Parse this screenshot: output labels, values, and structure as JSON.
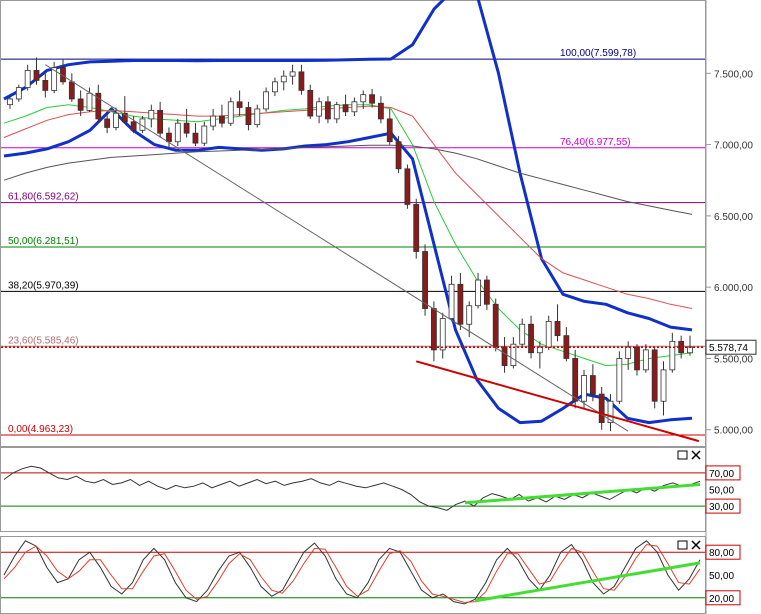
{
  "chart_data": [
    {
      "type": "candlestick",
      "panel": "price",
      "ylim": [
        4900,
        8000
      ],
      "y_ticks": [
        "7.500,00",
        "7.000,00",
        "6.500,00",
        "6.000,00",
        "5.500,00",
        "5.000,00"
      ],
      "y_tick_values": [
        7500,
        7000,
        6500,
        6000,
        5500,
        5000
      ],
      "last_price": {
        "label": "5.578,74",
        "value": 5578.74,
        "color": "#cc0000"
      },
      "fibonacci_levels": [
        {
          "label": "100,00(7.599,78)",
          "value": 7599.78,
          "color": "#000080"
        },
        {
          "label": "76,40(6.977,55)",
          "value": 6977.55,
          "color": "#cc00cc"
        },
        {
          "label": "61,80(6.592,62)",
          "value": 6592.62,
          "color": "#800080"
        },
        {
          "label": "50,00(6.281,51)",
          "value": 6281.51,
          "color": "#008000"
        },
        {
          "label": "38,20(5.970,39)",
          "value": 5970.39,
          "color": "#000000"
        },
        {
          "label": "23,60(5.585,46)",
          "value": 5585.46,
          "color": "#b07070"
        },
        {
          "label": "0,00(4.963,23)",
          "value": 4963.23,
          "color": "#cc0000"
        }
      ],
      "series": [
        {
          "kind": "bollinger-upper",
          "color": "#1030c8",
          "values": [
            7320,
            7400,
            7520,
            7560,
            7580,
            7585,
            7590,
            7590,
            7590,
            7588,
            7590,
            7590,
            7590,
            7590,
            7590,
            7592,
            7595,
            7598,
            7600,
            7700,
            7950,
            8100,
            8050,
            7500,
            6800,
            6200,
            5950,
            5900,
            5880,
            5820,
            5780,
            5720,
            5700
          ]
        },
        {
          "kind": "bollinger-lower",
          "color": "#1030c8",
          "values": [
            6920,
            6940,
            6970,
            7020,
            7100,
            7250,
            7100,
            7000,
            6960,
            6960,
            6980,
            6970,
            6960,
            6970,
            6990,
            7000,
            7020,
            7050,
            7080,
            6900,
            6300,
            5700,
            5350,
            5150,
            5050,
            5060,
            5150,
            5250,
            5220,
            5080,
            5050,
            5070,
            5080
          ]
        },
        {
          "kind": "ma-short",
          "color": "#2ecc40",
          "values": [
            7150,
            7200,
            7260,
            7280,
            7260,
            7230,
            7200,
            7180,
            7170,
            7160,
            7180,
            7200,
            7220,
            7240,
            7250,
            7270,
            7280,
            7280,
            7250,
            7000,
            6600,
            6300,
            6050,
            5850,
            5700,
            5600,
            5550,
            5500,
            5450,
            5460,
            5500,
            5520,
            5540
          ]
        },
        {
          "kind": "ma-mid",
          "color": "#e05050",
          "values": [
            7050,
            7110,
            7170,
            7210,
            7230,
            7240,
            7230,
            7220,
            7210,
            7200,
            7200,
            7210,
            7220,
            7230,
            7240,
            7250,
            7260,
            7270,
            7260,
            7200,
            7000,
            6800,
            6650,
            6500,
            6350,
            6200,
            6100,
            6050,
            6000,
            5950,
            5920,
            5880,
            5850
          ]
        },
        {
          "kind": "ma-long",
          "color": "#555555",
          "values": [
            6750,
            6800,
            6840,
            6870,
            6890,
            6910,
            6920,
            6930,
            6940,
            6950,
            6955,
            6960,
            6965,
            6970,
            6980,
            6985,
            6990,
            6995,
            6995,
            6990,
            6970,
            6940,
            6900,
            6850,
            6800,
            6760,
            6720,
            6680,
            6640,
            6600,
            6570,
            6540,
            6510
          ]
        }
      ],
      "candles": [
        {
          "o": 7280,
          "h": 7340,
          "l": 7250,
          "c": 7320
        },
        {
          "o": 7320,
          "h": 7420,
          "l": 7300,
          "c": 7400
        },
        {
          "o": 7400,
          "h": 7560,
          "l": 7380,
          "c": 7520
        },
        {
          "o": 7520,
          "h": 7610,
          "l": 7420,
          "c": 7450
        },
        {
          "o": 7450,
          "h": 7520,
          "l": 7330,
          "c": 7380
        },
        {
          "o": 7380,
          "h": 7580,
          "l": 7360,
          "c": 7540
        },
        {
          "o": 7540,
          "h": 7600,
          "l": 7420,
          "c": 7440
        },
        {
          "o": 7440,
          "h": 7500,
          "l": 7300,
          "c": 7320
        },
        {
          "o": 7320,
          "h": 7380,
          "l": 7200,
          "c": 7240
        },
        {
          "o": 7240,
          "h": 7400,
          "l": 7230,
          "c": 7360
        },
        {
          "o": 7360,
          "h": 7420,
          "l": 7150,
          "c": 7180
        },
        {
          "o": 7180,
          "h": 7230,
          "l": 7080,
          "c": 7120
        },
        {
          "o": 7120,
          "h": 7260,
          "l": 7100,
          "c": 7220
        },
        {
          "o": 7220,
          "h": 7340,
          "l": 7150,
          "c": 7160
        },
        {
          "o": 7160,
          "h": 7200,
          "l": 7080,
          "c": 7100
        },
        {
          "o": 7100,
          "h": 7200,
          "l": 7080,
          "c": 7180
        },
        {
          "o": 7180,
          "h": 7280,
          "l": 7120,
          "c": 7240
        },
        {
          "o": 7240,
          "h": 7300,
          "l": 7050,
          "c": 7080
        },
        {
          "o": 7080,
          "h": 7120,
          "l": 6980,
          "c": 7020
        },
        {
          "o": 7020,
          "h": 7180,
          "l": 6990,
          "c": 7150
        },
        {
          "o": 7150,
          "h": 7250,
          "l": 7050,
          "c": 7080
        },
        {
          "o": 7080,
          "h": 7150,
          "l": 6990,
          "c": 7010
        },
        {
          "o": 7010,
          "h": 7160,
          "l": 6990,
          "c": 7130
        },
        {
          "o": 7130,
          "h": 7250,
          "l": 7100,
          "c": 7200
        },
        {
          "o": 7200,
          "h": 7280,
          "l": 7120,
          "c": 7150
        },
        {
          "o": 7150,
          "h": 7330,
          "l": 7130,
          "c": 7300
        },
        {
          "o": 7300,
          "h": 7380,
          "l": 7200,
          "c": 7260
        },
        {
          "o": 7260,
          "h": 7300,
          "l": 7100,
          "c": 7140
        },
        {
          "o": 7140,
          "h": 7280,
          "l": 7120,
          "c": 7250
        },
        {
          "o": 7250,
          "h": 7400,
          "l": 7230,
          "c": 7370
        },
        {
          "o": 7370,
          "h": 7470,
          "l": 7340,
          "c": 7440
        },
        {
          "o": 7440,
          "h": 7520,
          "l": 7380,
          "c": 7480
        },
        {
          "o": 7480,
          "h": 7560,
          "l": 7420,
          "c": 7510
        },
        {
          "o": 7510,
          "h": 7560,
          "l": 7350,
          "c": 7380
        },
        {
          "o": 7380,
          "h": 7420,
          "l": 7180,
          "c": 7200
        },
        {
          "o": 7200,
          "h": 7330,
          "l": 7150,
          "c": 7300
        },
        {
          "o": 7300,
          "h": 7340,
          "l": 7150,
          "c": 7180
        },
        {
          "o": 7180,
          "h": 7300,
          "l": 7150,
          "c": 7280
        },
        {
          "o": 7280,
          "h": 7350,
          "l": 7200,
          "c": 7230
        },
        {
          "o": 7230,
          "h": 7330,
          "l": 7200,
          "c": 7300
        },
        {
          "o": 7300,
          "h": 7380,
          "l": 7250,
          "c": 7350
        },
        {
          "o": 7350,
          "h": 7390,
          "l": 7260,
          "c": 7290
        },
        {
          "o": 7290,
          "h": 7340,
          "l": 7150,
          "c": 7180
        },
        {
          "o": 7180,
          "h": 7250,
          "l": 7000,
          "c": 7020
        },
        {
          "o": 7020,
          "h": 7060,
          "l": 6800,
          "c": 6830
        },
        {
          "o": 6830,
          "h": 6860,
          "l": 6550,
          "c": 6580
        },
        {
          "o": 6580,
          "h": 6620,
          "l": 6200,
          "c": 6250
        },
        {
          "o": 6250,
          "h": 6300,
          "l": 5800,
          "c": 5850
        },
        {
          "o": 5850,
          "h": 5900,
          "l": 5480,
          "c": 5560
        },
        {
          "o": 5560,
          "h": 5820,
          "l": 5500,
          "c": 5780
        },
        {
          "o": 5780,
          "h": 6080,
          "l": 5760,
          "c": 6020
        },
        {
          "o": 6020,
          "h": 6100,
          "l": 5700,
          "c": 5740
        },
        {
          "o": 5740,
          "h": 5900,
          "l": 5650,
          "c": 5870
        },
        {
          "o": 5870,
          "h": 6100,
          "l": 5850,
          "c": 6050
        },
        {
          "o": 6050,
          "h": 6080,
          "l": 5840,
          "c": 5880
        },
        {
          "o": 5880,
          "h": 5920,
          "l": 5550,
          "c": 5580
        },
        {
          "o": 5580,
          "h": 5650,
          "l": 5400,
          "c": 5450
        },
        {
          "o": 5450,
          "h": 5650,
          "l": 5430,
          "c": 5600
        },
        {
          "o": 5600,
          "h": 5780,
          "l": 5580,
          "c": 5740
        },
        {
          "o": 5740,
          "h": 5800,
          "l": 5500,
          "c": 5540
        },
        {
          "o": 5540,
          "h": 5620,
          "l": 5430,
          "c": 5580
        },
        {
          "o": 5580,
          "h": 5800,
          "l": 5560,
          "c": 5760
        },
        {
          "o": 5760,
          "h": 5880,
          "l": 5620,
          "c": 5660
        },
        {
          "o": 5660,
          "h": 5720,
          "l": 5480,
          "c": 5500
        },
        {
          "o": 5500,
          "h": 5560,
          "l": 5150,
          "c": 5200
        },
        {
          "o": 5200,
          "h": 5420,
          "l": 5150,
          "c": 5380
        },
        {
          "o": 5380,
          "h": 5460,
          "l": 5200,
          "c": 5250
        },
        {
          "o": 5250,
          "h": 5300,
          "l": 5000,
          "c": 5050
        },
        {
          "o": 5050,
          "h": 5250,
          "l": 4990,
          "c": 5200
        },
        {
          "o": 5200,
          "h": 5550,
          "l": 5180,
          "c": 5500
        },
        {
          "o": 5500,
          "h": 5620,
          "l": 5420,
          "c": 5580
        },
        {
          "o": 5580,
          "h": 5600,
          "l": 5380,
          "c": 5420
        },
        {
          "o": 5420,
          "h": 5600,
          "l": 5400,
          "c": 5560
        },
        {
          "o": 5560,
          "h": 5580,
          "l": 5150,
          "c": 5200
        },
        {
          "o": 5200,
          "h": 5480,
          "l": 5100,
          "c": 5420
        },
        {
          "o": 5420,
          "h": 5680,
          "l": 5400,
          "c": 5620
        },
        {
          "o": 5620,
          "h": 5660,
          "l": 5500,
          "c": 5540
        },
        {
          "o": 5540,
          "h": 5660,
          "l": 5520,
          "c": 5580
        }
      ]
    },
    {
      "type": "line",
      "panel": "oscillator-1",
      "ylim": [
        0,
        100
      ],
      "y_ticks": [
        "70,00",
        "50,00",
        "30,00"
      ],
      "y_tick_values": [
        70,
        50,
        30
      ],
      "series": [
        {
          "color": "#333333",
          "values": [
            62,
            70,
            75,
            78,
            76,
            70,
            64,
            62,
            66,
            60,
            58,
            62,
            56,
            58,
            62,
            55,
            60,
            54,
            50,
            55,
            52,
            54,
            58,
            52,
            56,
            60,
            54,
            58,
            62,
            57,
            60,
            55,
            58,
            60,
            63,
            58,
            55,
            60,
            57,
            54,
            52,
            55,
            58,
            54,
            50,
            44,
            35,
            30,
            28,
            25,
            32,
            36,
            30,
            40,
            45,
            42,
            38,
            44,
            36,
            40,
            35,
            42,
            38,
            44,
            40,
            46,
            42,
            38,
            44,
            50,
            46,
            52,
            48,
            55,
            58,
            54,
            56,
            60
          ]
        },
        {
          "kind": "trendline",
          "color": "#44dd33",
          "start": 23,
          "end": 48
        }
      ]
    },
    {
      "type": "line",
      "panel": "oscillator-2",
      "ylim": [
        0,
        100
      ],
      "y_ticks": [
        "80,00",
        "50,00",
        "20,00"
      ],
      "y_tick_values": [
        80,
        50,
        20
      ],
      "series": [
        {
          "color": "#333333",
          "values": [
            50,
            75,
            95,
            88,
            60,
            40,
            45,
            70,
            80,
            60,
            35,
            25,
            40,
            70,
            85,
            70,
            40,
            20,
            15,
            30,
            55,
            75,
            80,
            60,
            35,
            22,
            30,
            55,
            80,
            92,
            75,
            45,
            25,
            20,
            40,
            70,
            85,
            80,
            55,
            30,
            20,
            25,
            15,
            12,
            18,
            40,
            70,
            85,
            70,
            45,
            30,
            50,
            80,
            90,
            70,
            40,
            25,
            35,
            60,
            85,
            95,
            80,
            50,
            30,
            45,
            70
          ]
        },
        {
          "color": "#e04030",
          "values": [
            45,
            60,
            80,
            88,
            75,
            55,
            45,
            55,
            70,
            70,
            50,
            32,
            32,
            55,
            75,
            78,
            55,
            30,
            18,
            22,
            42,
            65,
            78,
            70,
            48,
            30,
            26,
            42,
            65,
            85,
            84,
            60,
            35,
            22,
            30,
            55,
            78,
            82,
            68,
            42,
            25,
            22,
            18,
            14,
            15,
            28,
            55,
            78,
            78,
            58,
            38,
            42,
            65,
            85,
            80,
            55,
            32,
            30,
            48,
            72,
            90,
            88,
            65,
            40,
            38,
            58
          ]
        },
        {
          "kind": "trendline",
          "color": "#44dd33",
          "start": 12,
          "end": 43
        }
      ]
    }
  ]
}
